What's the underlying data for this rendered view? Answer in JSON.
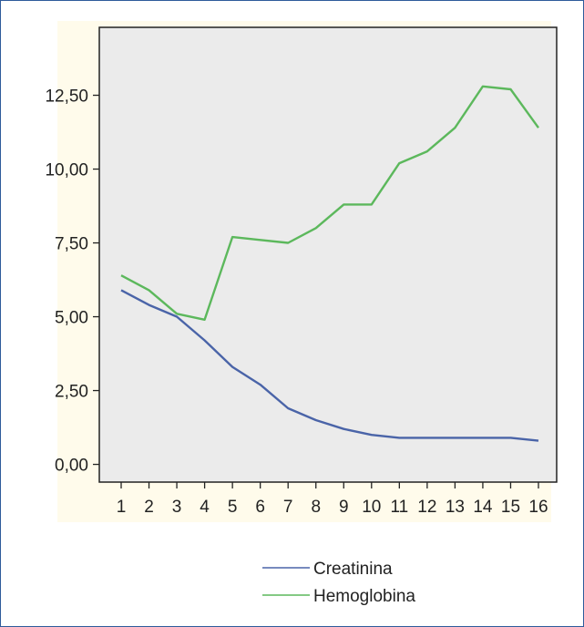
{
  "colors": {
    "panel_background": "#fffbeb",
    "plot_background": "#ebebeb",
    "creatinina": "#4a64a8",
    "hemoglobina": "#5cb85c",
    "frame_border": "#2f5b9b"
  },
  "legend": {
    "position": "bottom-center",
    "items": [
      {
        "label": "Creatinina",
        "series": "Creatinina"
      },
      {
        "label": "Hemoglobina",
        "series": "Hemoglobina"
      }
    ]
  },
  "chart_data": {
    "type": "line",
    "title": "",
    "xlabel": "",
    "ylabel": "",
    "x": [
      1,
      2,
      3,
      4,
      5,
      6,
      7,
      8,
      9,
      10,
      11,
      12,
      13,
      14,
      15,
      16
    ],
    "xticklabels": [
      "1",
      "2",
      "3",
      "4",
      "5",
      "6",
      "7",
      "8",
      "9",
      "10",
      "11",
      "12",
      "13",
      "14",
      "15",
      "16"
    ],
    "ylim": [
      -0.6,
      14.8
    ],
    "yticks": [
      0,
      2.5,
      5,
      7.5,
      10,
      12.5
    ],
    "yticklabels": [
      "0,00",
      "2,50",
      "5,00",
      "7,50",
      "10,00",
      "12,50"
    ],
    "grid": false,
    "series": [
      {
        "name": "Creatinina",
        "color": "#4a64a8",
        "values": [
          5.9,
          5.4,
          5.0,
          4.2,
          3.3,
          2.7,
          1.9,
          1.5,
          1.2,
          1.0,
          0.9,
          0.9,
          0.9,
          0.9,
          0.9,
          0.8
        ]
      },
      {
        "name": "Hemoglobina",
        "color": "#5cb85c",
        "values": [
          6.4,
          5.9,
          5.1,
          4.9,
          7.7,
          7.6,
          7.5,
          8.0,
          8.8,
          8.8,
          10.2,
          10.6,
          11.4,
          12.8,
          12.7,
          11.4
        ]
      }
    ]
  }
}
